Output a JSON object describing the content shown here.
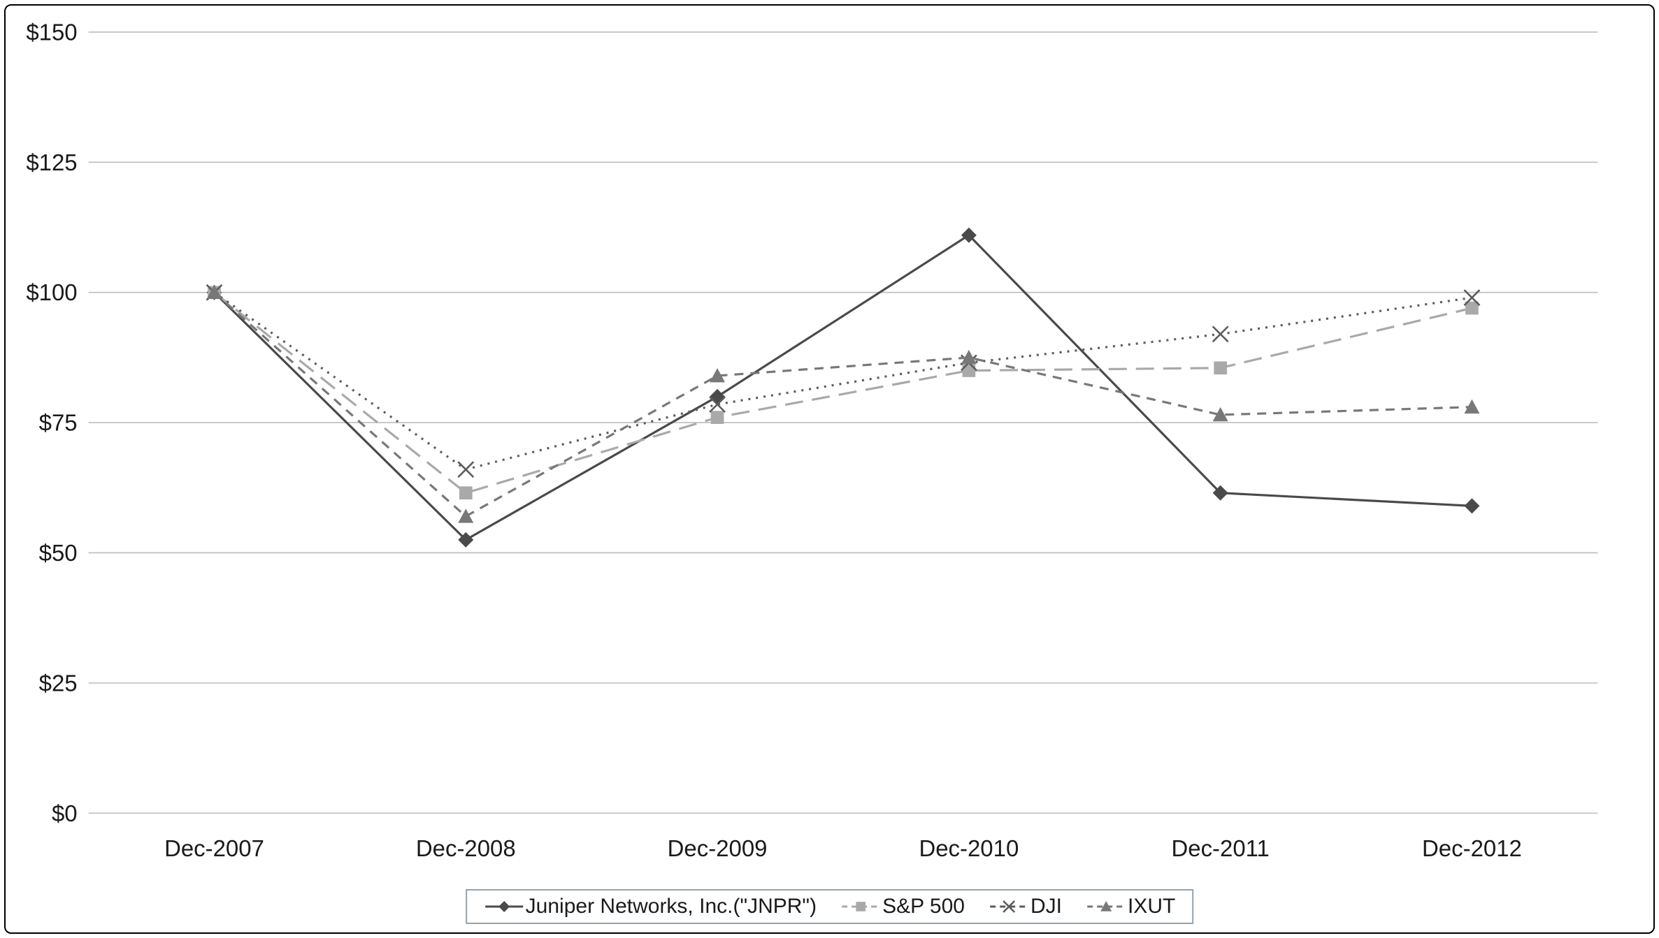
{
  "chart_data": {
    "type": "line",
    "title": "",
    "xlabel": "",
    "ylabel": "",
    "grid": true,
    "legend_position": "bottom-center",
    "ylim": [
      0,
      150
    ],
    "categories": [
      "Dec-2007",
      "Dec-2008",
      "Dec-2009",
      "Dec-2010",
      "Dec-2011",
      "Dec-2012"
    ],
    "y_ticks": [
      {
        "label": "$0",
        "value": 0
      },
      {
        "label": "$25",
        "value": 25
      },
      {
        "label": "$50",
        "value": 50
      },
      {
        "label": "$75",
        "value": 75
      },
      {
        "label": "$100",
        "value": 100
      },
      {
        "label": "$125",
        "value": 125
      },
      {
        "label": "$150",
        "value": 150
      }
    ],
    "series": [
      {
        "name": "Juniper Networks, Inc.(\"JNPR\")",
        "values": [
          100,
          52.5,
          80,
          111,
          61.5,
          59
        ],
        "color": "#4a4a4a",
        "marker": "diamond",
        "line_style": "solid"
      },
      {
        "name": "S&P 500",
        "values": [
          100,
          61.5,
          76,
          85,
          85.5,
          97
        ],
        "color": "#a9a9a9",
        "marker": "square",
        "line_style": "long-dash"
      },
      {
        "name": "DJI",
        "values": [
          100,
          66,
          78.5,
          86.5,
          92,
          99
        ],
        "color": "#5c5c5c",
        "marker": "x",
        "line_style": "dotted"
      },
      {
        "name": "IXUT",
        "values": [
          100,
          57,
          84,
          87.5,
          76.5,
          78
        ],
        "color": "#787878",
        "marker": "triangle",
        "line_style": "dash"
      }
    ],
    "styles": {
      "gridline_color": "#bdbdbd",
      "axis_text_color": "#1a1a1a",
      "frame_border_color": "#000000",
      "legend_border_color": "#94a3ad",
      "background_color": "#ffffff"
    }
  }
}
